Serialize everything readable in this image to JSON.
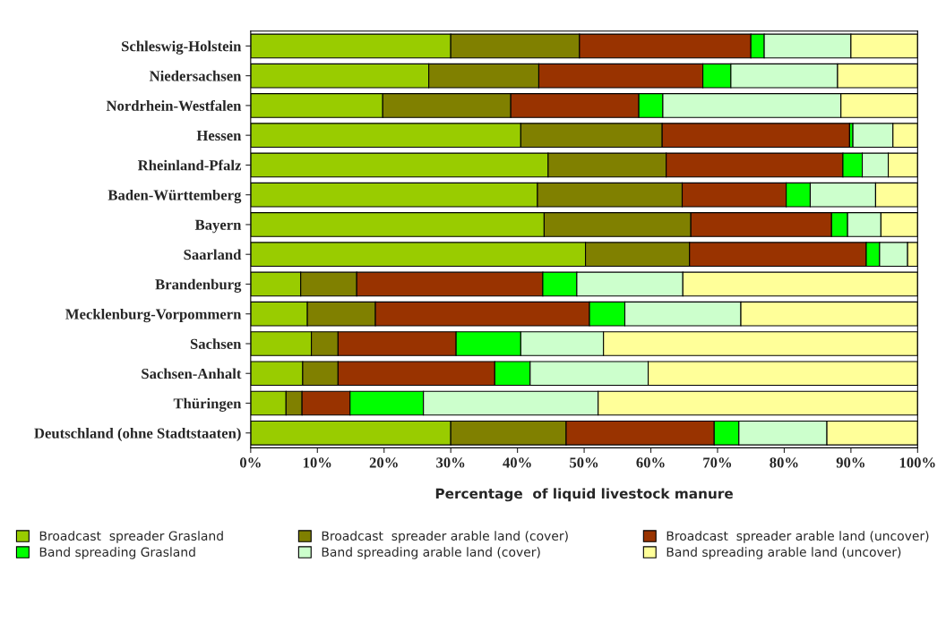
{
  "chart_data": {
    "type": "bar",
    "orientation": "horizontal",
    "stacked": true,
    "xlabel": "Percentage  of liquid livestock manure",
    "categories": [
      "Schleswig-Holstein",
      "Niedersachsen",
      "Nordrhein-Westfalen",
      "Hessen",
      "Rheinland-Pfalz",
      "Baden-Württemberg",
      "Bayern",
      "Saarland",
      "Brandenburg",
      "Mecklenburg-Vorpommern",
      "Sachsen",
      "Sachsen-Anhalt",
      "Thüringen",
      "Deutschland (ohne Stadtstaaten)"
    ],
    "xlim": [
      0,
      100
    ],
    "xticks": [
      {
        "value": 0,
        "label": "0%"
      },
      {
        "value": 10,
        "label": "10%"
      },
      {
        "value": 20,
        "label": "20%"
      },
      {
        "value": 30,
        "label": "30%"
      },
      {
        "value": 40,
        "label": "40%"
      },
      {
        "value": 50,
        "label": "50%"
      },
      {
        "value": 60,
        "label": "60%"
      },
      {
        "value": 70,
        "label": "70%"
      },
      {
        "value": 80,
        "label": "80%"
      },
      {
        "value": 90,
        "label": "90%"
      },
      {
        "value": 100,
        "label": "100%"
      }
    ],
    "legend": "bottom",
    "grid": false,
    "series": [
      {
        "name": "Broadcast  spreader Grasland",
        "color": "#99cc00",
        "values": [
          30,
          26.7,
          19.8,
          40.5,
          44.6,
          43,
          44,
          50.2,
          7.5,
          8.5,
          9.1,
          7.8,
          5.3,
          30
        ]
      },
      {
        "name": "Broadcast  spreader arable land (cover)",
        "color": "#808000",
        "values": [
          19.3,
          16.5,
          19.2,
          21.2,
          17.7,
          21.7,
          22,
          15.6,
          8.4,
          10.2,
          4,
          5.3,
          2.4,
          17.3
        ]
      },
      {
        "name": "Broadcast  spreader arable land (uncover)",
        "color": "#993300",
        "values": [
          25.7,
          24.6,
          19.2,
          28.1,
          26.5,
          15.6,
          21.1,
          26.5,
          27.9,
          32.1,
          17.7,
          23.5,
          7.2,
          22.2
        ]
      },
      {
        "name": "Band spreading Grasland",
        "color": "#00ff00",
        "values": [
          2,
          4.2,
          3.6,
          0.5,
          2.9,
          3.6,
          2.4,
          2,
          5.1,
          5.3,
          9.7,
          5.3,
          11,
          3.7
        ]
      },
      {
        "name": "Band spreading arable land (cover)",
        "color": "#ccffcc",
        "values": [
          13,
          16,
          26.7,
          6,
          3.9,
          9.8,
          5,
          4.2,
          15.9,
          17.4,
          12.4,
          17.7,
          26.2,
          13.2
        ]
      },
      {
        "name": "Band spreading arable land (uncover)",
        "color": "#ffff99",
        "values": [
          10,
          12,
          11.5,
          3.7,
          4.4,
          6.3,
          5.5,
          1.5,
          35.2,
          26.5,
          47.1,
          40.4,
          47.9,
          13.6
        ]
      }
    ]
  }
}
